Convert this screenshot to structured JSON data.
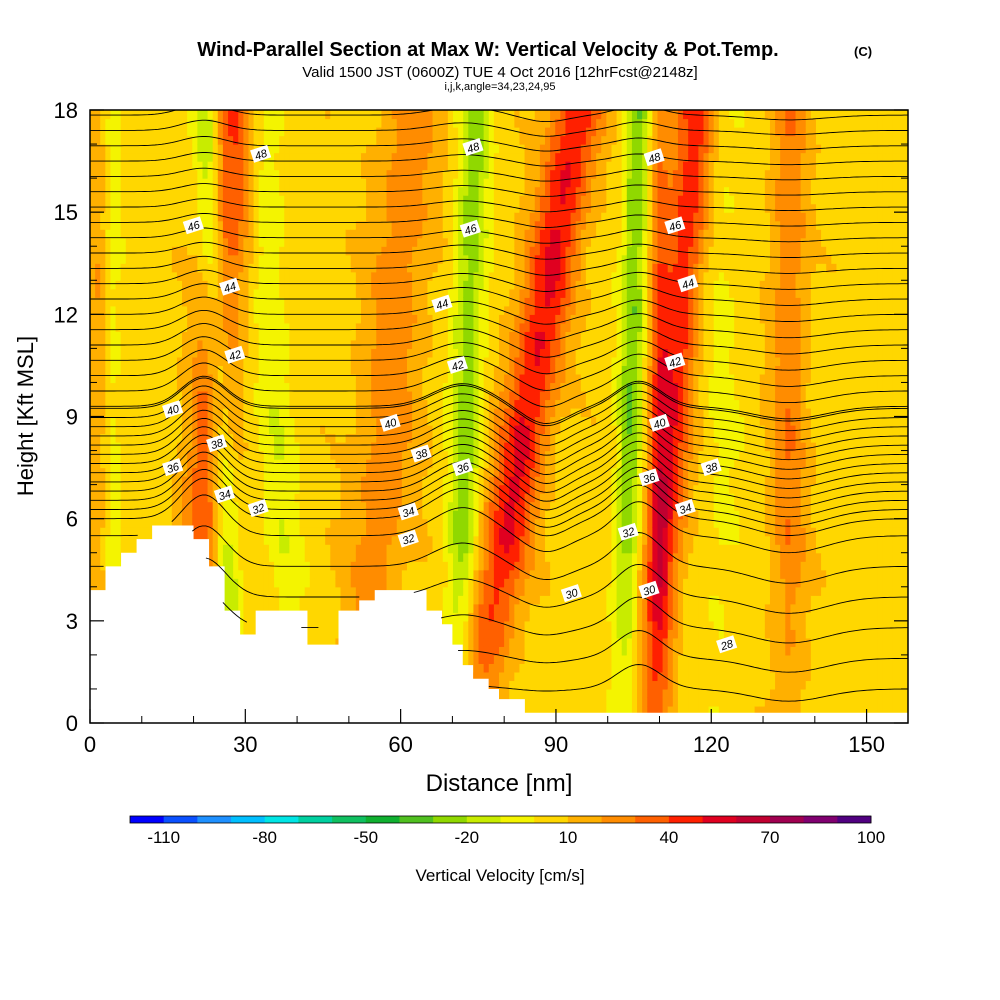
{
  "chart_data": {
    "type": "heatmap",
    "title": "Wind-Parallel Section at Max W: Vertical Velocity & Pot.Temp.",
    "title_mark": "(C)",
    "subtitle": "Valid 1500 JST (0600Z) TUE 4 Oct 2016 [12hrFcst@2148z]",
    "subtitle2": "i,j,k,angle=34,23,24,95",
    "xlabel": "Distance [nm]",
    "ylabel": "Height [Kft MSL]",
    "xlim": [
      0,
      158
    ],
    "ylim": [
      0,
      18
    ],
    "x_ticks": [
      "0",
      "30",
      "60",
      "90",
      "120",
      "150"
    ],
    "y_ticks": [
      "0",
      "3",
      "6",
      "9",
      "12",
      "15",
      "18"
    ],
    "colorbar": {
      "label": "Vertical Velocity [cm/s]",
      "tick_labels": [
        "-110",
        "-80",
        "-50",
        "-20",
        "10",
        "40",
        "70",
        "100"
      ],
      "colors": [
        "#0000ff",
        "#0a50ff",
        "#1e90ff",
        "#00bfff",
        "#00e5e5",
        "#00d0a0",
        "#10c060",
        "#10b030",
        "#50c020",
        "#90d800",
        "#c8ec00",
        "#f4f400",
        "#ffd700",
        "#ffb000",
        "#ff8c00",
        "#ff6000",
        "#ff2000",
        "#e00020",
        "#c00030",
        "#a00050",
        "#800070",
        "#500080"
      ]
    },
    "updraft_bands": [
      {
        "x": 22,
        "w": 4.5,
        "tilt": 0.1,
        "amp": 35
      },
      {
        "x": 56,
        "w": 6.0,
        "tilt": 0.1,
        "amp": 20
      },
      {
        "x": 81,
        "w": 5.0,
        "tilt": 0.22,
        "amp": 45
      },
      {
        "x": 111,
        "w": 4.0,
        "tilt": 0.1,
        "amp": 40
      },
      {
        "x": 110,
        "w": 2.0,
        "tilt": 0.0,
        "amp": 22
      },
      {
        "x": 135,
        "w": 3.5,
        "tilt": 0.0,
        "amp": 22
      },
      {
        "x": 2,
        "w": 2.5,
        "tilt": 0.0,
        "amp": 15
      }
    ],
    "downdraft_bands": [
      {
        "x": 26,
        "w": 2.5,
        "tilt": -0.06,
        "amp": 30
      },
      {
        "x": 72,
        "w": 3.0,
        "tilt": 0.04,
        "amp": 32
      },
      {
        "x": 104,
        "w": 2.5,
        "tilt": 0.03,
        "amp": 35
      },
      {
        "x": 37,
        "w": 3.5,
        "tilt": -0.07,
        "amp": 14
      },
      {
        "x": 4,
        "w": 2.0,
        "tilt": 0.0,
        "amp": 15
      },
      {
        "x": 122,
        "w": 4.0,
        "tilt": 0.0,
        "amp": 8
      }
    ],
    "terrain": [
      [
        0,
        3.9
      ],
      [
        3,
        4.6
      ],
      [
        6,
        5.0
      ],
      [
        9,
        5.4
      ],
      [
        12,
        5.8
      ],
      [
        18,
        5.8
      ],
      [
        20,
        5.4
      ],
      [
        23,
        4.6
      ],
      [
        26,
        3.3
      ],
      [
        29,
        2.6
      ],
      [
        32,
        3.3
      ],
      [
        39,
        3.3
      ],
      [
        42,
        2.3
      ],
      [
        48,
        3.3
      ],
      [
        52,
        3.6
      ],
      [
        55,
        3.9
      ],
      [
        61,
        3.9
      ],
      [
        65,
        3.3
      ],
      [
        68,
        2.9
      ],
      [
        70,
        2.3
      ],
      [
        72,
        1.7
      ],
      [
        74,
        1.3
      ],
      [
        77,
        1.0
      ],
      [
        79,
        0.7
      ],
      [
        83,
        0.7
      ],
      [
        84,
        0.3
      ],
      [
        158,
        0.3
      ]
    ],
    "theta_contours": [
      {
        "theta": "28",
        "labels": [
          [
            123,
            2.3
          ]
        ]
      },
      {
        "theta": "30",
        "labels": [
          [
            93,
            3.8
          ],
          [
            108,
            3.9
          ]
        ]
      },
      {
        "theta": "32",
        "labels": [
          [
            32.5,
            6.3
          ],
          [
            61.5,
            5.4
          ],
          [
            104,
            5.6
          ]
        ]
      },
      {
        "theta": "34",
        "labels": [
          [
            26,
            6.7
          ],
          [
            61.5,
            6.2
          ],
          [
            115,
            6.3
          ]
        ]
      },
      {
        "theta": "36",
        "labels": [
          [
            16,
            7.5
          ],
          [
            72,
            7.5
          ],
          [
            108,
            7.2
          ]
        ]
      },
      {
        "theta": "38",
        "labels": [
          [
            24.5,
            8.2
          ],
          [
            64,
            7.9
          ],
          [
            120,
            7.5
          ]
        ]
      },
      {
        "theta": "40",
        "labels": [
          [
            16,
            9.2
          ],
          [
            58,
            8.8
          ],
          [
            110,
            8.8
          ]
        ]
      },
      {
        "theta": "42",
        "labels": [
          [
            28,
            10.8
          ],
          [
            71,
            10.5
          ],
          [
            113,
            10.6
          ]
        ]
      },
      {
        "theta": "44",
        "labels": [
          [
            27,
            12.8
          ],
          [
            68,
            12.3
          ],
          [
            115.5,
            12.9
          ]
        ]
      },
      {
        "theta": "46",
        "labels": [
          [
            20,
            14.6
          ],
          [
            73.5,
            14.5
          ],
          [
            113,
            14.6
          ]
        ]
      },
      {
        "theta": "48",
        "labels": [
          [
            33,
            16.7
          ],
          [
            74,
            16.9
          ],
          [
            109,
            16.6
          ]
        ]
      }
    ]
  }
}
